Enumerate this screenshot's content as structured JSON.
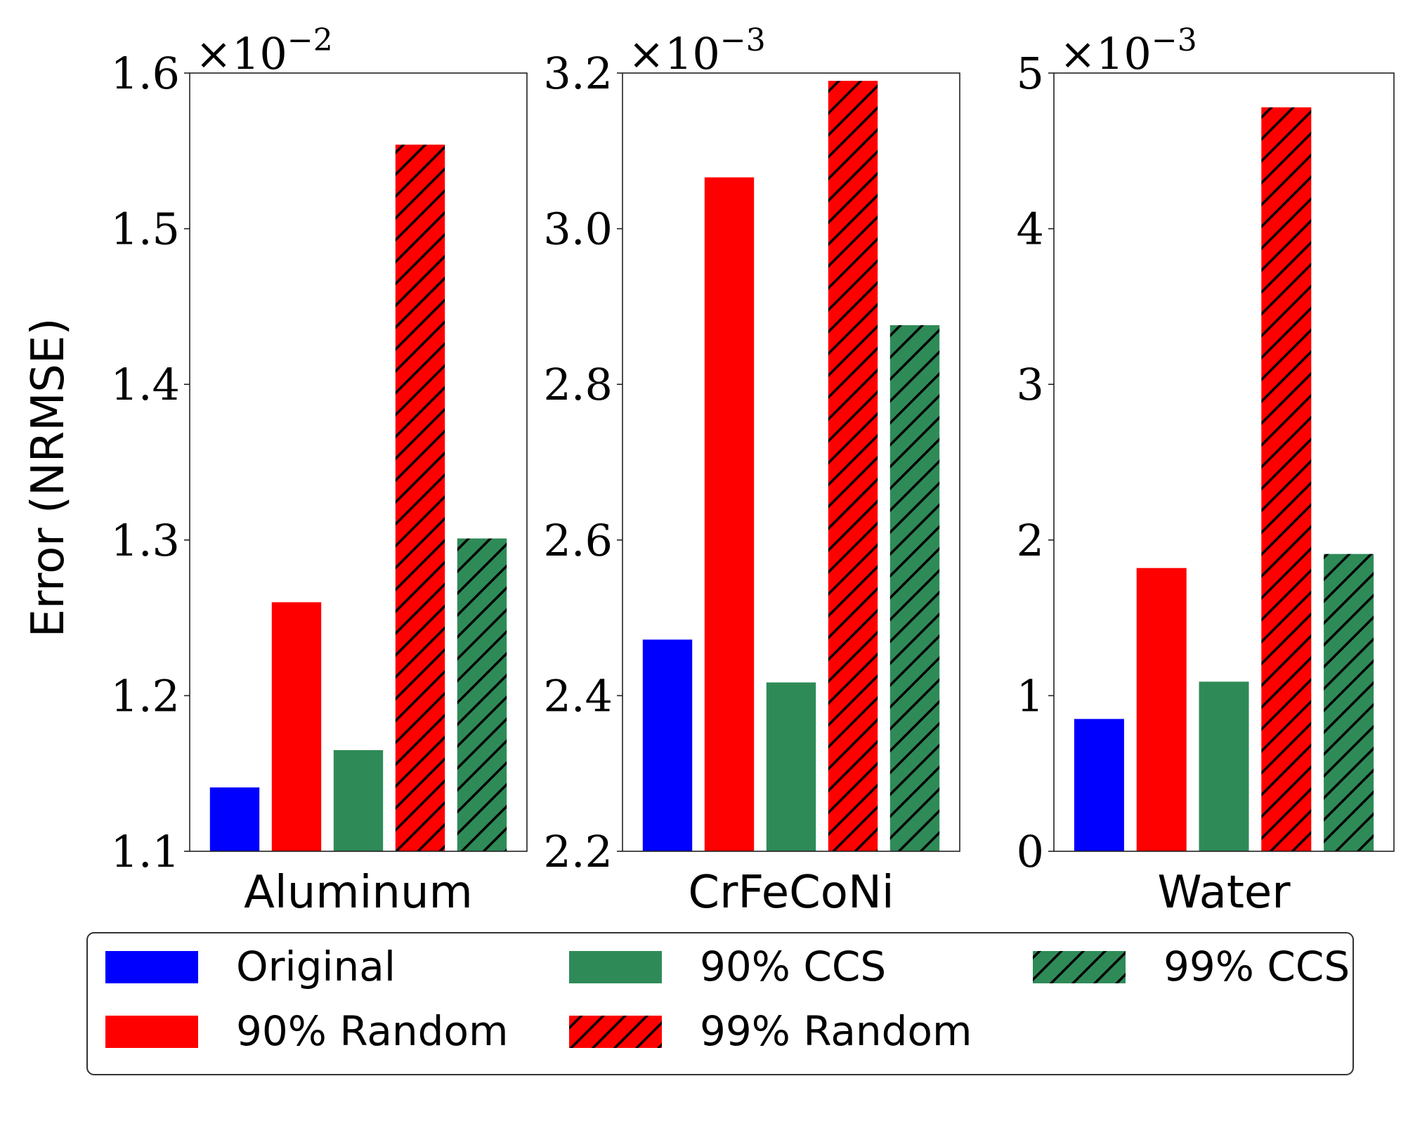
{
  "chart_data": [
    {
      "type": "bar",
      "panel_label": "Aluminum",
      "ylabel": "Error (NRMSE)",
      "ylim": [
        1.1,
        1.6
      ],
      "yticks": [
        "1.1",
        "1.2",
        "1.3",
        "1.4",
        "1.5",
        "1.6"
      ],
      "ytick_values": [
        1.1,
        1.2,
        1.3,
        1.4,
        1.5,
        1.6
      ],
      "scale_base": "10",
      "scale_exponent": "−2",
      "categories": [
        "Original",
        "90% Random",
        "90% CCS",
        "99% Random",
        "99% CCS"
      ],
      "values": [
        1.141,
        1.26,
        1.165,
        1.554,
        1.301
      ]
    },
    {
      "type": "bar",
      "panel_label": "CrFeCoNi",
      "ylim": [
        2.2,
        3.2
      ],
      "yticks": [
        "2.2",
        "2.4",
        "2.6",
        "2.8",
        "3.0",
        "3.2"
      ],
      "ytick_values": [
        2.2,
        2.4,
        2.6,
        2.8,
        3.0,
        3.2
      ],
      "scale_base": "10",
      "scale_exponent": "−3",
      "categories": [
        "Original",
        "90% Random",
        "90% CCS",
        "99% Random",
        "99% CCS"
      ],
      "values": [
        2.472,
        3.066,
        2.417,
        3.19,
        2.876
      ]
    },
    {
      "type": "bar",
      "panel_label": "Water",
      "ylim": [
        0,
        5
      ],
      "yticks": [
        "0",
        "1",
        "2",
        "3",
        "4",
        "5"
      ],
      "ytick_values": [
        0,
        1,
        2,
        3,
        4,
        5
      ],
      "scale_base": "10",
      "scale_exponent": "−3",
      "categories": [
        "Original",
        "90% Random",
        "90% CCS",
        "99% Random",
        "99% CCS"
      ],
      "values": [
        0.85,
        1.82,
        1.09,
        4.78,
        1.91
      ]
    }
  ],
  "legend": {
    "placement": "bottom",
    "items": [
      {
        "label": "Original",
        "color": "#0000ff",
        "hatch": false
      },
      {
        "label": "90% Random",
        "color": "#ff0000",
        "hatch": false
      },
      {
        "label": "90% CCS",
        "color": "#2e8b57",
        "hatch": false
      },
      {
        "label": "99% Random",
        "color": "#ff0000",
        "hatch": true
      },
      {
        "label": "99% CCS",
        "color": "#2e8b57",
        "hatch": true
      }
    ]
  },
  "colors": {
    "original": "#0000ff",
    "random": "#ff0000",
    "ccs": "#2e8b57",
    "hatch": "#000000"
  }
}
